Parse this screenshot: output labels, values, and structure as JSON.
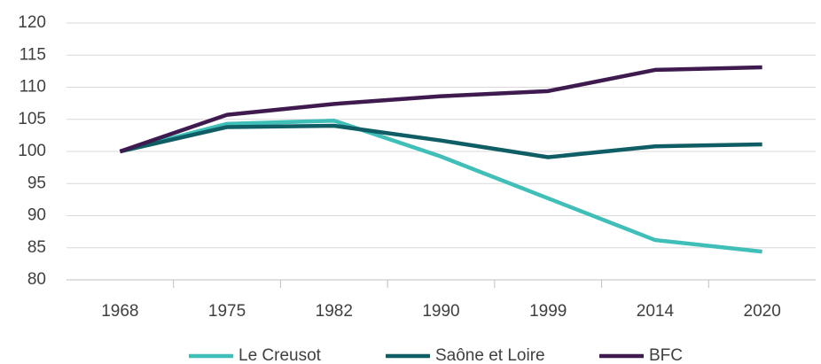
{
  "chart_data": {
    "type": "line",
    "categories": [
      "1968",
      "1975",
      "1982",
      "1990",
      "1999",
      "2014",
      "2020"
    ],
    "series": [
      {
        "name": "Le Creusot",
        "color": "#3fbfb8",
        "values": [
          100,
          104.3,
          104.8,
          99.2,
          92.7,
          86.2,
          84.4
        ]
      },
      {
        "name": "Saône et Loire",
        "color": "#0f5e65",
        "values": [
          100,
          103.8,
          104,
          101.7,
          99.1,
          100.8,
          101.1
        ]
      },
      {
        "name": "BFC",
        "color": "#3e1a4f",
        "values": [
          100,
          105.7,
          107.4,
          108.6,
          109.4,
          112.7,
          113.1
        ]
      }
    ],
    "ylim": [
      80,
      120
    ],
    "yticks": [
      80,
      85,
      90,
      95,
      100,
      105,
      110,
      115,
      120
    ],
    "grid": true,
    "legend": "bottom"
  }
}
